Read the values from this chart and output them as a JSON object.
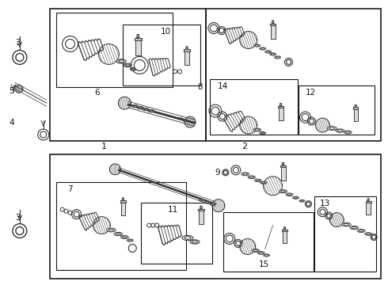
{
  "fig_width": 4.9,
  "fig_height": 3.6,
  "dpi": 100,
  "bg_color": "#ffffff",
  "line_color": "#1a1a1a",
  "dark": "#222222",
  "gray": "#888888",
  "light_gray": "#cccccc"
}
